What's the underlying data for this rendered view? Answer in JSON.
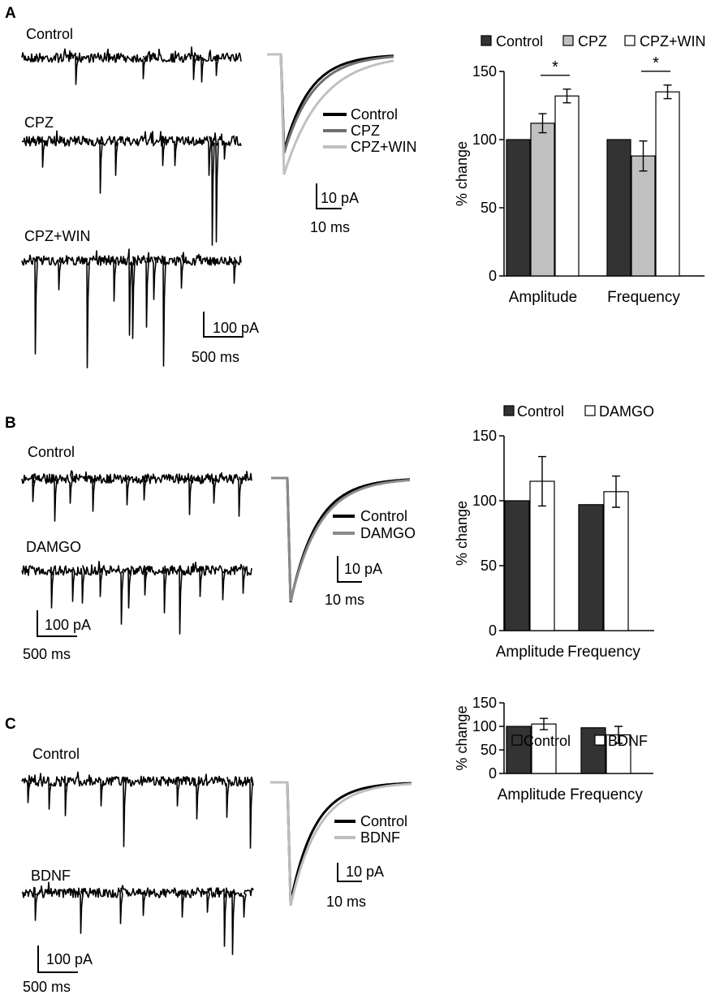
{
  "panels": [
    {
      "letter": "A",
      "traces": [
        "Control",
        "CPZ",
        "CPZ+WIN"
      ],
      "trace_scale": {
        "y": "100 pA",
        "x": "500 ms"
      },
      "overlay": {
        "legend": [
          {
            "label": "Control",
            "color": "#000000"
          },
          {
            "label": "CPZ",
            "color": "#6e6e6e"
          },
          {
            "label": "CPZ+WIN",
            "color": "#c0c0c0"
          }
        ],
        "scale": {
          "y": "10 pA",
          "x": "10 ms"
        }
      }
    },
    {
      "letter": "B",
      "traces": [
        "Control",
        "DAMGO"
      ],
      "trace_scale": {
        "y": "100 pA",
        "x": "500 ms"
      },
      "overlay": {
        "legend": [
          {
            "label": "Control",
            "color": "#000000"
          },
          {
            "label": "DAMGO",
            "color": "#8a8a8a"
          }
        ],
        "scale": {
          "y": "10 pA",
          "x": "10 ms"
        }
      }
    },
    {
      "letter": "C",
      "traces": [
        "Control",
        "BDNF"
      ],
      "trace_scale": {
        "y": "100 pA",
        "x": "500 ms"
      },
      "overlay": {
        "legend": [
          {
            "label": "Control",
            "color": "#000000"
          },
          {
            "label": "BDNF",
            "color": "#bdbdbd"
          }
        ],
        "scale": {
          "y": "10 pA",
          "x": "10 ms"
        }
      }
    }
  ],
  "chart_data": [
    {
      "type": "bar",
      "panel": "A",
      "ylabel": "% change",
      "ylim": [
        0,
        150
      ],
      "yticks": [
        "0",
        "50",
        "100",
        "150"
      ],
      "categories": [
        "Amplitude",
        "Frequency"
      ],
      "series": [
        {
          "name": "Control",
          "color": "#333333",
          "values": [
            100,
            100
          ],
          "errors": [
            0,
            0
          ]
        },
        {
          "name": "CPZ",
          "color": "#c0c0c0",
          "values": [
            112,
            88
          ],
          "errors": [
            7,
            11
          ]
        },
        {
          "name": "CPZ+WIN",
          "color": "#ffffff",
          "values": [
            132,
            135
          ],
          "errors": [
            5,
            5
          ]
        }
      ],
      "significance": [
        {
          "category": "Amplitude",
          "between": [
            "CPZ",
            "CPZ+WIN"
          ],
          "label": "*"
        },
        {
          "category": "Frequency",
          "between": [
            "CPZ",
            "CPZ+WIN"
          ],
          "label": "*"
        }
      ],
      "legend_position": "top"
    },
    {
      "type": "bar",
      "panel": "B",
      "ylabel": "% change",
      "ylim": [
        0,
        150
      ],
      "yticks": [
        "0",
        "50",
        "100",
        "150"
      ],
      "categories": [
        "Amplitude",
        "Frequency"
      ],
      "series": [
        {
          "name": "Control",
          "color": "#333333",
          "values": [
            100,
            97
          ],
          "errors": [
            0,
            0
          ]
        },
        {
          "name": "DAMGO",
          "color": "#ffffff",
          "values": [
            115,
            107
          ],
          "errors": [
            19,
            12
          ]
        }
      ],
      "legend_position": "top"
    },
    {
      "type": "bar",
      "panel": "C",
      "ylabel": "% change",
      "ylim": [
        0,
        150
      ],
      "yticks": [
        "0",
        "50",
        "100",
        "150"
      ],
      "categories": [
        "Amplitude",
        "Frequency"
      ],
      "series": [
        {
          "name": "Control",
          "color": "#333333",
          "values": [
            100,
            97
          ],
          "errors": [
            0,
            0
          ]
        },
        {
          "name": "BDNF",
          "color": "#ffffff",
          "values": [
            105,
            82
          ],
          "errors": [
            12,
            18
          ]
        }
      ],
      "legend_position": "top"
    }
  ]
}
